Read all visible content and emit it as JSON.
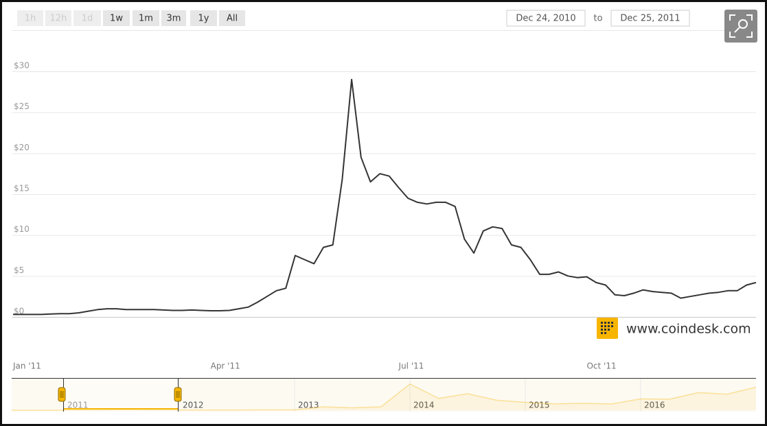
{
  "controls": {
    "range_buttons": [
      "1h",
      "12h",
      "1d",
      "1w",
      "1m",
      "3m",
      "1y",
      "All"
    ],
    "from": "Dec 24, 2010",
    "to_label": "to",
    "to": "Dec 25, 2011"
  },
  "watermark": "www.coindesk.com",
  "chart_data": [
    {
      "type": "line",
      "color": "#333333",
      "grid": true,
      "categories": [
        "Jan '11",
        null,
        null,
        null,
        null,
        null,
        null,
        null,
        null,
        null,
        null,
        null,
        null,
        null,
        null,
        null,
        null,
        null,
        null,
        null,
        null,
        "Apr '11",
        null,
        null,
        null,
        null,
        null,
        null,
        null,
        null,
        null,
        null,
        null,
        null,
        null,
        null,
        null,
        null,
        null,
        null,
        null,
        "Jul '11",
        null,
        null,
        null,
        null,
        null,
        null,
        null,
        null,
        null,
        null,
        null,
        null,
        null,
        null,
        null,
        null,
        null,
        null,
        null,
        "Oct '11",
        null,
        null,
        null,
        null,
        null,
        null,
        null,
        null,
        null,
        null,
        null,
        null,
        null,
        null,
        null,
        null,
        null,
        null
      ],
      "values": [
        0.3,
        0.3,
        0.3,
        0.3,
        0.35,
        0.4,
        0.4,
        0.5,
        0.7,
        0.9,
        1.0,
        1.0,
        0.9,
        0.9,
        0.9,
        0.9,
        0.85,
        0.8,
        0.8,
        0.85,
        0.8,
        0.75,
        0.75,
        0.8,
        1.0,
        1.2,
        1.8,
        2.5,
        3.2,
        3.5,
        7.5,
        7.0,
        6.5,
        8.5,
        8.8,
        16.8,
        29.0,
        19.5,
        16.5,
        17.5,
        17.2,
        15.8,
        14.5,
        14.0,
        13.8,
        14.0,
        14.0,
        13.5,
        9.5,
        7.8,
        10.5,
        11.0,
        10.8,
        8.8,
        8.5,
        7.0,
        5.2,
        5.2,
        5.5,
        5.0,
        4.8,
        4.9,
        4.2,
        3.9,
        2.7,
        2.6,
        2.9,
        3.3,
        3.1,
        3.0,
        2.9,
        2.3,
        2.5,
        2.7,
        2.9,
        3.0,
        3.2,
        3.2,
        3.9,
        4.2
      ],
      "ylim": [
        0,
        35
      ],
      "yticks": [
        {
          "value": 0,
          "label": "$0"
        },
        {
          "value": 5,
          "label": "$5"
        },
        {
          "value": 10,
          "label": "$10"
        },
        {
          "value": 15,
          "label": "$15"
        },
        {
          "value": 20,
          "label": "$20"
        },
        {
          "value": 25,
          "label": "$25"
        },
        {
          "value": 30,
          "label": "$30"
        }
      ]
    },
    {
      "type": "area",
      "color": "#f7b500",
      "categories": [
        null,
        null,
        "2011",
        null,
        null,
        null,
        "2012",
        null,
        null,
        null,
        "2013",
        null,
        null,
        null,
        "2014",
        null,
        null,
        null,
        "2015",
        null,
        null,
        null,
        "2016",
        null,
        null,
        null,
        null
      ],
      "values": [
        0.07,
        0.2,
        0.3,
        0.8,
        15,
        4,
        5,
        5,
        7,
        12,
        14,
        130,
        90,
        130,
        1000,
        450,
        630,
        380,
        300,
        240,
        260,
        240,
        430,
        420,
        670,
        610,
        880
      ],
      "ylim": [
        0,
        1200
      ]
    }
  ]
}
